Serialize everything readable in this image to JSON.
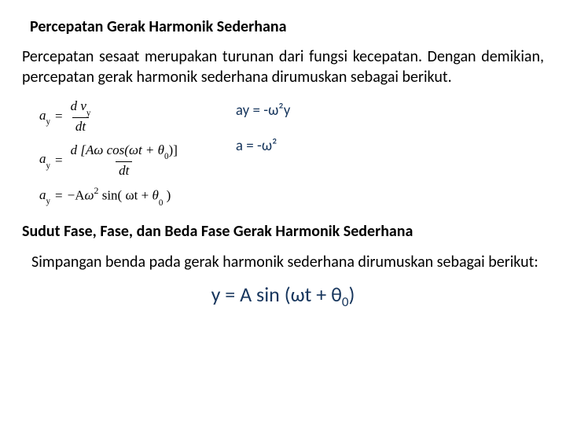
{
  "section1": {
    "heading": "Percepatan Gerak Harmonik Sederhana",
    "heading_fontsize": 20,
    "para": "Percepatan sesaat merupakan turunan dari fungsi kecepatan. Dengan demikian, percepatan gerak harmonik sederhana dirumuskan sebagai berikut.",
    "para_fontsize": 20,
    "text_color": "#000000"
  },
  "equations_left": {
    "fontsize": 17,
    "eq1": {
      "lhs_base": "a",
      "lhs_sub": "y",
      "num_d": "d",
      "num_v": "v",
      "num_sub": "y",
      "den_d": "d",
      "den_t": "t"
    },
    "eq2": {
      "lhs_base": "a",
      "lhs_sub": "y",
      "num": "d [Aω cos(ωt + θ",
      "num_sub": "0",
      "num_close": ")]",
      "den_d": "d",
      "den_t": "t"
    },
    "eq3": {
      "lhs_base": "a",
      "lhs_sub": "y",
      "rhs_pre": "−A",
      "rhs_omega": "ω",
      "rhs_exp": "2",
      "rhs_sin": " sin( ωt + ",
      "rhs_theta": "θ",
      "rhs_theta_sub": "0",
      "rhs_close": " )"
    }
  },
  "equations_right": {
    "fontsize": 19,
    "eq1": "ay = -ω²y",
    "eq2": "a = -ω²",
    "color": "#17365d"
  },
  "section2": {
    "heading": "Sudut Fase, Fase, dan Beda Fase Gerak Harmonik Sederhana",
    "heading_fontsize": 20,
    "para": "Simpangan benda pada gerak harmonik sederhana dirumuskan sebagai berikut:",
    "para_fontsize": 20
  },
  "big_eq": {
    "text": "y = A sin (ωt + θ",
    "sub": "0",
    "close": ")",
    "fontsize": 26,
    "color": "#17365d"
  }
}
